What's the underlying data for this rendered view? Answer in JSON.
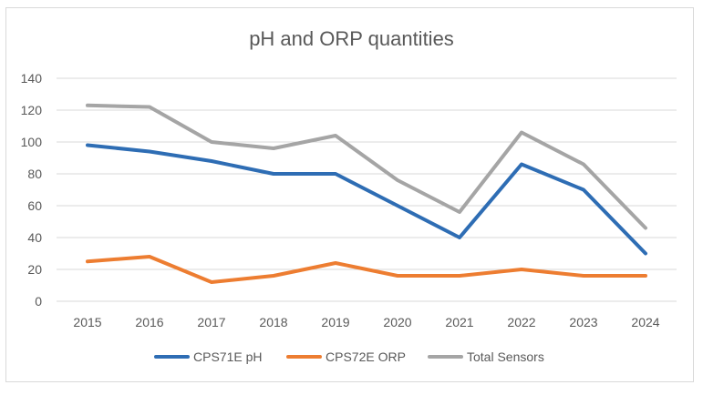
{
  "chart_data": {
    "type": "line",
    "title": "pH and ORP quantities",
    "xlabel": "",
    "ylabel": "",
    "categories": [
      "2015",
      "2016",
      "2017",
      "2018",
      "2019",
      "2020",
      "2021",
      "2022",
      "2023",
      "2024"
    ],
    "ylim": [
      0,
      140
    ],
    "yticks": [
      "0",
      "20",
      "40",
      "60",
      "80",
      "100",
      "120",
      "140"
    ],
    "grid": true,
    "legend_position": "bottom",
    "series": [
      {
        "name": "CPS71E pH",
        "color": "#2e6db4",
        "values": [
          98,
          94,
          88,
          80,
          80,
          60,
          40,
          86,
          70,
          30
        ]
      },
      {
        "name": "CPS72E ORP",
        "color": "#ed7d31",
        "values": [
          25,
          28,
          12,
          16,
          24,
          16,
          16,
          20,
          16,
          16
        ]
      },
      {
        "name": "Total Sensors",
        "color": "#a5a5a5",
        "values": [
          123,
          122,
          100,
          96,
          104,
          76,
          56,
          106,
          86,
          46
        ]
      }
    ]
  }
}
